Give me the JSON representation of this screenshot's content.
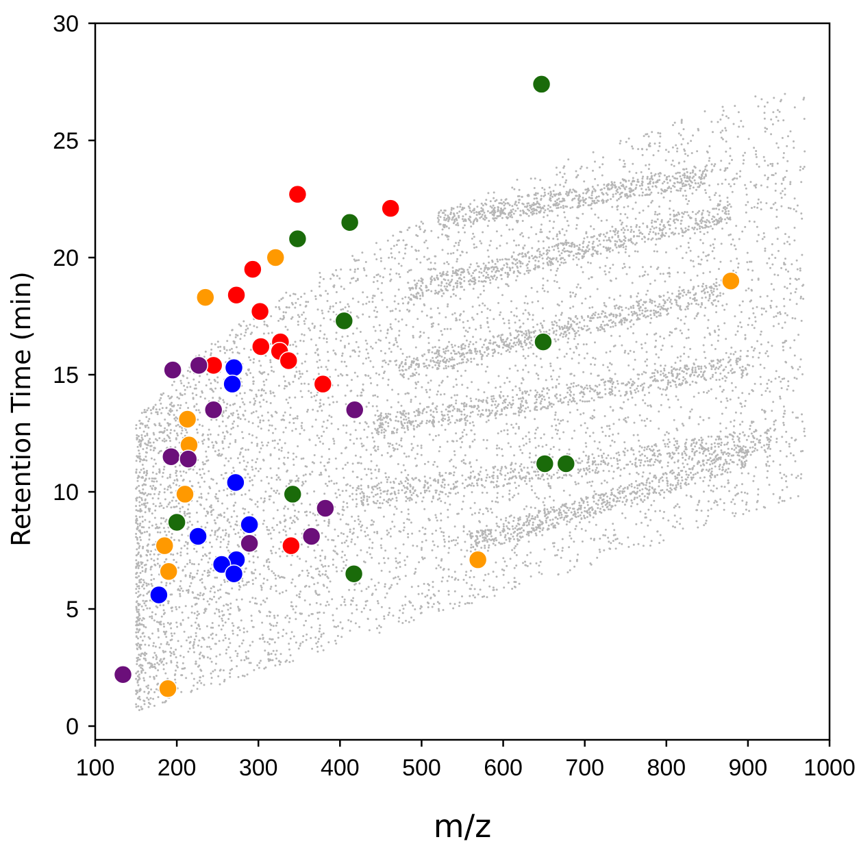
{
  "chart_data": {
    "type": "scatter",
    "title": "",
    "xlabel": "m/z",
    "ylabel": "Retention Time (min)",
    "xlim": [
      100,
      1000
    ],
    "ylim": [
      0,
      30
    ],
    "xticks": [
      100,
      200,
      300,
      400,
      500,
      600,
      700,
      800,
      900,
      1000
    ],
    "yticks": [
      0,
      5,
      10,
      15,
      20,
      25,
      30
    ],
    "grid": false,
    "legend": "none",
    "background": {
      "color": "#9e9e9e",
      "note_count": 6000,
      "bands": [
        {
          "x": [
            420,
            930
          ],
          "y": [
            9.8,
            12.3
          ]
        },
        {
          "x": [
            440,
            900
          ],
          "y": [
            12.8,
            15.4
          ]
        },
        {
          "x": [
            470,
            870
          ],
          "y": [
            15.2,
            18.6
          ]
        },
        {
          "x": [
            480,
            880
          ],
          "y": [
            18.5,
            22.0
          ]
        },
        {
          "x": [
            520,
            850
          ],
          "y": [
            21.6,
            23.5
          ]
        },
        {
          "x": [
            560,
            900
          ],
          "y": [
            7.8,
            11.5
          ]
        }
      ]
    },
    "series": [
      {
        "color": "#ff0000",
        "points": [
          {
            "x": 348,
            "y": 22.7
          },
          {
            "x": 462,
            "y": 22.1
          },
          {
            "x": 293,
            "y": 19.5
          },
          {
            "x": 273,
            "y": 18.4
          },
          {
            "x": 302,
            "y": 17.7
          },
          {
            "x": 303,
            "y": 16.2
          },
          {
            "x": 327,
            "y": 16.4
          },
          {
            "x": 326,
            "y": 16.0
          },
          {
            "x": 337,
            "y": 15.6
          },
          {
            "x": 245,
            "y": 15.4
          },
          {
            "x": 379,
            "y": 14.6
          },
          {
            "x": 340,
            "y": 7.7
          }
        ]
      },
      {
        "color": "#ff9900",
        "points": [
          {
            "x": 321,
            "y": 20.0
          },
          {
            "x": 235,
            "y": 18.3
          },
          {
            "x": 879,
            "y": 19.0
          },
          {
            "x": 213,
            "y": 13.1
          },
          {
            "x": 215,
            "y": 12.0
          },
          {
            "x": 210,
            "y": 9.9
          },
          {
            "x": 185,
            "y": 7.7
          },
          {
            "x": 190,
            "y": 6.6
          },
          {
            "x": 189,
            "y": 1.6
          },
          {
            "x": 569,
            "y": 7.1
          }
        ]
      },
      {
        "color": "#1a6b0a",
        "points": [
          {
            "x": 647,
            "y": 27.4
          },
          {
            "x": 412,
            "y": 21.5
          },
          {
            "x": 348,
            "y": 20.8
          },
          {
            "x": 405,
            "y": 17.3
          },
          {
            "x": 649,
            "y": 16.4
          },
          {
            "x": 651,
            "y": 11.2
          },
          {
            "x": 677,
            "y": 11.2
          },
          {
            "x": 342,
            "y": 9.9
          },
          {
            "x": 200,
            "y": 8.7
          },
          {
            "x": 417,
            "y": 6.5
          }
        ]
      },
      {
        "color": "#0000ff",
        "points": [
          {
            "x": 270,
            "y": 15.3
          },
          {
            "x": 268,
            "y": 14.6
          },
          {
            "x": 272,
            "y": 10.4
          },
          {
            "x": 289,
            "y": 8.6
          },
          {
            "x": 226,
            "y": 8.1
          },
          {
            "x": 273,
            "y": 7.1
          },
          {
            "x": 255,
            "y": 6.9
          },
          {
            "x": 270,
            "y": 6.5
          },
          {
            "x": 178,
            "y": 5.6
          }
        ]
      },
      {
        "color": "#6b0f7a",
        "points": [
          {
            "x": 195,
            "y": 15.2
          },
          {
            "x": 227,
            "y": 15.4
          },
          {
            "x": 245,
            "y": 13.5
          },
          {
            "x": 418,
            "y": 13.5
          },
          {
            "x": 193,
            "y": 11.5
          },
          {
            "x": 214,
            "y": 11.4
          },
          {
            "x": 382,
            "y": 9.3
          },
          {
            "x": 289,
            "y": 7.8
          },
          {
            "x": 365,
            "y": 8.1
          },
          {
            "x": 134,
            "y": 2.2
          }
        ]
      }
    ]
  }
}
